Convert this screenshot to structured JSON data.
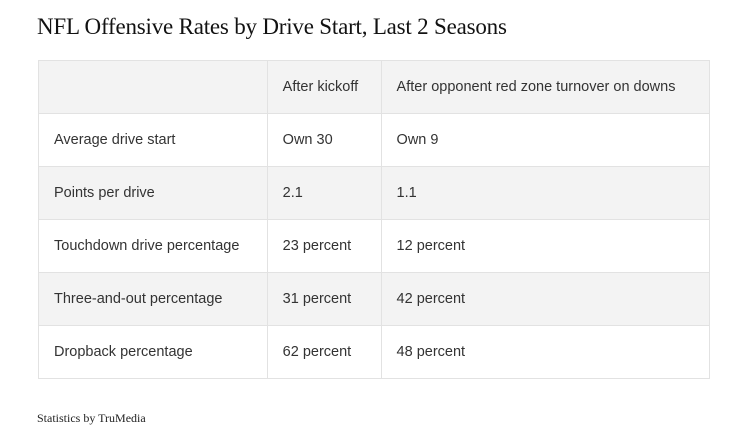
{
  "title": "NFL Offensive Rates by Drive Start, Last 2 Seasons",
  "table": {
    "headers": [
      "After kickoff",
      "After opponent red zone turnover on downs"
    ],
    "rows": [
      [
        "Average drive start",
        "Own 30",
        "Own 9"
      ],
      [
        "Points per drive",
        "2.1",
        "1.1"
      ],
      [
        "Touchdown drive percentage",
        "23 percent",
        "12 percent"
      ],
      [
        "Three-and-out percentage",
        "31 percent",
        "42 percent"
      ],
      [
        "Dropback percentage",
        "62 percent",
        "48 percent"
      ]
    ]
  },
  "source": "Statistics by TruMedia"
}
